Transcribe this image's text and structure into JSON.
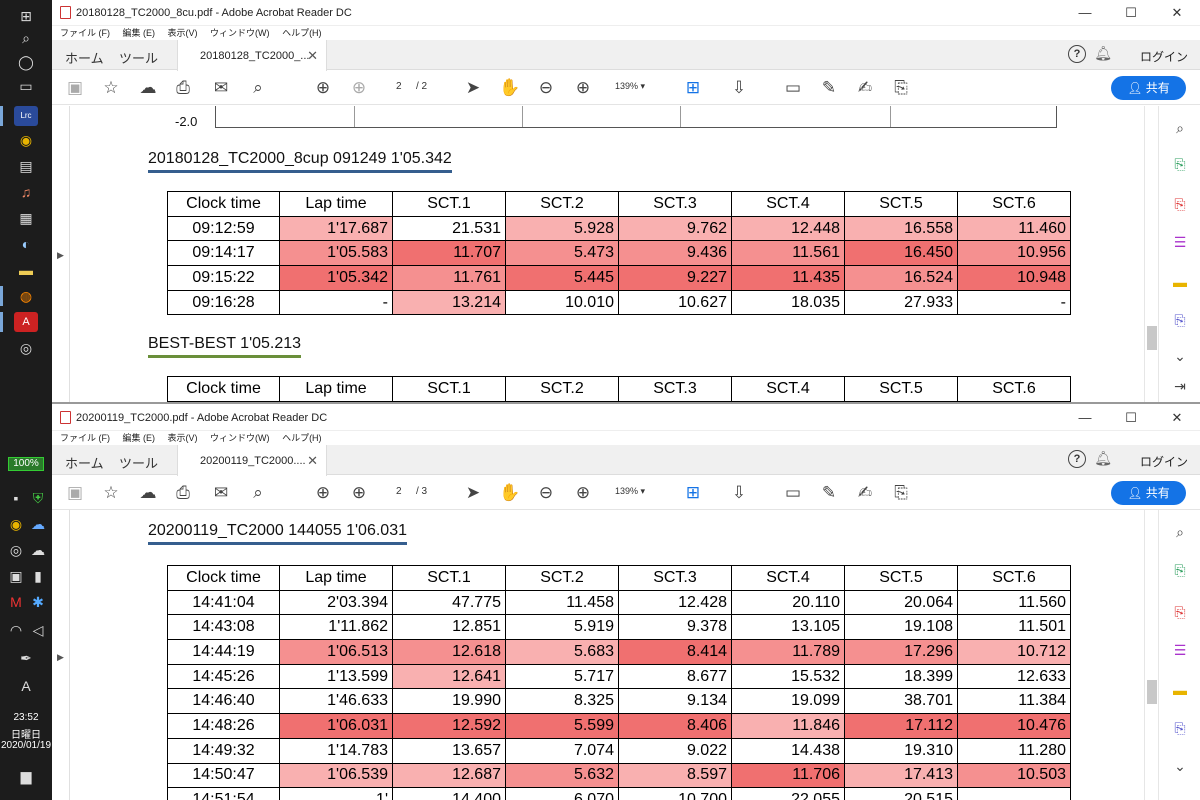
{
  "taskbar": {
    "battery": "100%",
    "time": "23:52",
    "weekday": "日曜日",
    "date": "2020/01/19"
  },
  "window1": {
    "title": "20180128_TC2000_8cu.pdf - Adobe Acrobat Reader DC",
    "menu": [
      "ファイル (F)",
      "編集 (E)",
      "表示(V)",
      "ウィンドウ(W)",
      "ヘルプ(H)"
    ],
    "tabs": {
      "home": "ホーム",
      "tools": "ツール",
      "doc": "20180128_TC2000_..."
    },
    "login": "ログイン",
    "share": "共有",
    "page_current": "2",
    "page_total": "/ 2",
    "zoom": "139%",
    "y_axis_tick": "-2.0",
    "section1": {
      "heading": "20180128_TC2000_8cup 091249 1'05.342",
      "headers": [
        "Clock time",
        "Lap time",
        "SCT.1",
        "SCT.2",
        "SCT.3",
        "SCT.4",
        "SCT.5",
        "SCT.6"
      ],
      "rows": [
        {
          "cells": [
            "09:12:59",
            "1'17.687",
            "21.531",
            "5.928",
            "9.762",
            "12.448",
            "16.558",
            "11.460"
          ],
          "heat": [
            0,
            1,
            0,
            1,
            1,
            1,
            1,
            1
          ]
        },
        {
          "cells": [
            "09:14:17",
            "1'05.583",
            "11.707",
            "5.473",
            "9.436",
            "11.561",
            "16.450",
            "10.956"
          ],
          "heat": [
            0,
            2,
            3,
            2,
            2,
            2,
            3,
            2
          ]
        },
        {
          "cells": [
            "09:15:22",
            "1'05.342",
            "11.761",
            "5.445",
            "9.227",
            "11.435",
            "16.524",
            "10.948"
          ],
          "heat": [
            0,
            3,
            2,
            3,
            3,
            3,
            2,
            3
          ]
        },
        {
          "cells": [
            "09:16:28",
            "-",
            "13.214",
            "10.010",
            "10.627",
            "18.035",
            "27.933",
            "-"
          ],
          "heat": [
            0,
            0,
            1,
            0,
            0,
            0,
            0,
            0
          ]
        }
      ]
    },
    "section2": {
      "heading": "BEST-BEST 1'05.213",
      "headers": [
        "Clock time",
        "Lap time",
        "SCT.1",
        "SCT.2",
        "SCT.3",
        "SCT.4",
        "SCT.5",
        "SCT.6"
      ]
    }
  },
  "window2": {
    "title": "20200119_TC2000.pdf - Adobe Acrobat Reader DC",
    "menu": [
      "ファイル (F)",
      "編集 (E)",
      "表示(V)",
      "ウィンドウ(W)",
      "ヘルプ(H)"
    ],
    "tabs": {
      "home": "ホーム",
      "tools": "ツール",
      "doc": "20200119_TC2000...."
    },
    "login": "ログイン",
    "share": "共有",
    "page_current": "2",
    "page_total": "/ 3",
    "zoom": "139%",
    "section": {
      "heading": "20200119_TC2000 144055 1'06.031",
      "headers": [
        "Clock time",
        "Lap time",
        "SCT.1",
        "SCT.2",
        "SCT.3",
        "SCT.4",
        "SCT.5",
        "SCT.6"
      ],
      "rows": [
        {
          "cells": [
            "14:41:04",
            "2'03.394",
            "47.775",
            "11.458",
            "12.428",
            "20.110",
            "20.064",
            "11.560"
          ],
          "heat": [
            0,
            0,
            0,
            0,
            0,
            0,
            0,
            0
          ]
        },
        {
          "cells": [
            "14:43:08",
            "1'11.862",
            "12.851",
            "5.919",
            "9.378",
            "13.105",
            "19.108",
            "11.501"
          ],
          "heat": [
            0,
            0,
            0,
            0,
            0,
            0,
            0,
            0
          ]
        },
        {
          "cells": [
            "14:44:19",
            "1'06.513",
            "12.618",
            "5.683",
            "8.414",
            "11.789",
            "17.296",
            "10.712"
          ],
          "heat": [
            0,
            2,
            2,
            1,
            3,
            2,
            2,
            1
          ]
        },
        {
          "cells": [
            "14:45:26",
            "1'13.599",
            "12.641",
            "5.717",
            "8.677",
            "15.532",
            "18.399",
            "12.633"
          ],
          "heat": [
            0,
            0,
            1,
            0,
            0,
            0,
            0,
            0
          ]
        },
        {
          "cells": [
            "14:46:40",
            "1'46.633",
            "19.990",
            "8.325",
            "9.134",
            "19.099",
            "38.701",
            "11.384"
          ],
          "heat": [
            0,
            0,
            0,
            0,
            0,
            0,
            0,
            0
          ]
        },
        {
          "cells": [
            "14:48:26",
            "1'06.031",
            "12.592",
            "5.599",
            "8.406",
            "11.846",
            "17.112",
            "10.476"
          ],
          "heat": [
            0,
            3,
            3,
            3,
            3,
            1,
            3,
            3
          ]
        },
        {
          "cells": [
            "14:49:32",
            "1'14.783",
            "13.657",
            "7.074",
            "9.022",
            "14.438",
            "19.310",
            "11.280"
          ],
          "heat": [
            0,
            0,
            0,
            0,
            0,
            0,
            0,
            0
          ]
        },
        {
          "cells": [
            "14:50:47",
            "1'06.539",
            "12.687",
            "5.632",
            "8.597",
            "11.706",
            "17.413",
            "10.503"
          ],
          "heat": [
            0,
            1,
            1,
            2,
            1,
            3,
            1,
            2
          ]
        },
        {
          "cells": [
            "14:51:54",
            "1'",
            "14.400",
            "6.070",
            "10.700",
            "22.055",
            "20.515",
            ""
          ],
          "heat": [
            0,
            0,
            0,
            0,
            0,
            0,
            0,
            0
          ]
        }
      ]
    }
  }
}
